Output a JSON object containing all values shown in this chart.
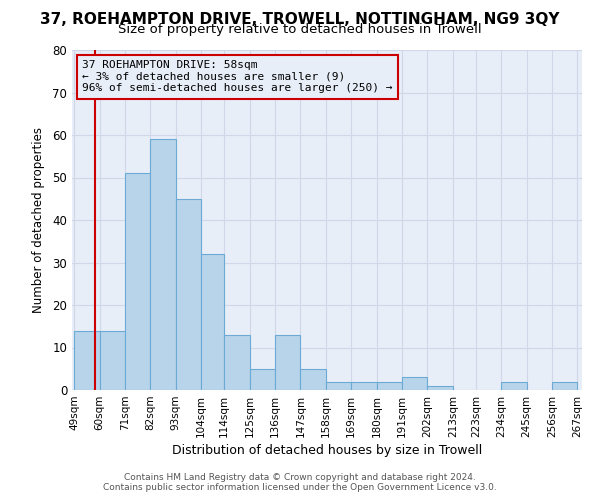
{
  "title": "37, ROEHAMPTON DRIVE, TROWELL, NOTTINGHAM, NG9 3QY",
  "subtitle": "Size of property relative to detached houses in Trowell",
  "xlabel": "Distribution of detached houses by size in Trowell",
  "ylabel": "Number of detached properties",
  "footer1": "Contains HM Land Registry data © Crown copyright and database right 2024.",
  "footer2": "Contains public sector information licensed under the Open Government Licence v3.0.",
  "bin_edges": [
    49,
    60,
    71,
    82,
    93,
    104,
    114,
    125,
    136,
    147,
    158,
    169,
    180,
    191,
    202,
    213,
    223,
    234,
    245,
    256,
    267
  ],
  "bar_heights": [
    14,
    14,
    51,
    59,
    45,
    32,
    13,
    5,
    13,
    5,
    2,
    2,
    2,
    3,
    1,
    0,
    0,
    2,
    0,
    2
  ],
  "bar_color": "#b8d4ea",
  "bar_edge_color": "#6aaad4",
  "grid_color": "#d0d8e8",
  "plot_bg_color": "#e8eef8",
  "fig_bg_color": "#ffffff",
  "property_size": 58,
  "red_line_color": "#cc0000",
  "annotation_line1": "37 ROEHAMPTON DRIVE: 58sqm",
  "annotation_line2": "← 3% of detached houses are smaller (9)",
  "annotation_line3": "96% of semi-detached houses are larger (250) →",
  "ylim": [
    0,
    80
  ],
  "yticks": [
    0,
    10,
    20,
    30,
    40,
    50,
    60,
    70,
    80
  ],
  "title_fontsize": 11,
  "subtitle_fontsize": 9.5,
  "ylabel_fontsize": 8.5,
  "xlabel_fontsize": 9,
  "tick_fontsize": 7.5,
  "footer_fontsize": 6.5,
  "annot_fontsize": 8
}
